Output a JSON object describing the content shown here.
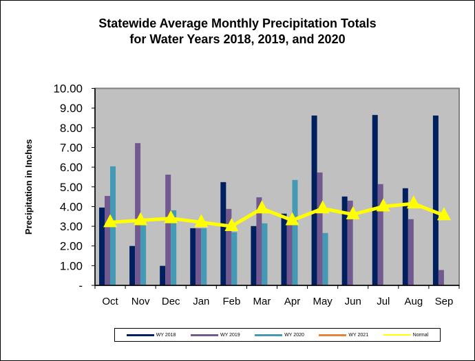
{
  "chart_data": {
    "type": "bar",
    "title": "Statewide Average Monthly Precipitation Totals for Water Years 2018, 2019, and 2020",
    "title_lines": [
      "Statewide Average Monthly Precipitation Totals",
      "for Water Years 2018, 2019, and 2020"
    ],
    "ylabel": "Precipitation in Inches",
    "xlabel": "",
    "ylim": [
      0,
      10
    ],
    "ytick_labels": [
      "-",
      "1.00",
      "2.00",
      "3.00",
      "4.00",
      "5.00",
      "6.00",
      "7.00",
      "8.00",
      "9.00",
      "10.00"
    ],
    "categories": [
      "Oct",
      "Nov",
      "Dec",
      "Jan",
      "Feb",
      "Mar",
      "Apr",
      "May",
      "Jun",
      "Jul",
      "Aug",
      "Sep"
    ],
    "grid": false,
    "plot_background": "#c0c0c0",
    "legend_position": "bottom",
    "series": [
      {
        "name": "WY 2018",
        "kind": "bar",
        "color": "#001f5f",
        "values": [
          3.95,
          2.0,
          0.99,
          2.9,
          5.24,
          3.01,
          3.64,
          8.62,
          4.51,
          8.65,
          4.93,
          8.62
        ]
      },
      {
        "name": "WY 2019",
        "kind": "bar",
        "color": "#725a91",
        "values": [
          4.54,
          7.22,
          5.62,
          2.9,
          3.88,
          4.47,
          3.3,
          5.73,
          4.3,
          5.14,
          3.36,
          0.78
        ]
      },
      {
        "name": "WY 2020",
        "kind": "bar",
        "color": "#4499b4",
        "values": [
          6.04,
          3.05,
          3.81,
          2.9,
          2.7,
          3.15,
          5.35,
          2.66,
          null,
          null,
          null,
          null
        ]
      },
      {
        "name": "WY 2021",
        "kind": "bar",
        "color": "#de843c",
        "values": [
          null,
          null,
          null,
          null,
          null,
          null,
          null,
          null,
          null,
          null,
          null,
          null
        ]
      },
      {
        "name": "Normal",
        "kind": "line",
        "color": "#ffff00",
        "values": [
          3.2,
          3.3,
          3.4,
          3.2,
          3.0,
          3.9,
          3.3,
          3.9,
          3.6,
          4.0,
          4.15,
          3.55
        ]
      }
    ]
  }
}
